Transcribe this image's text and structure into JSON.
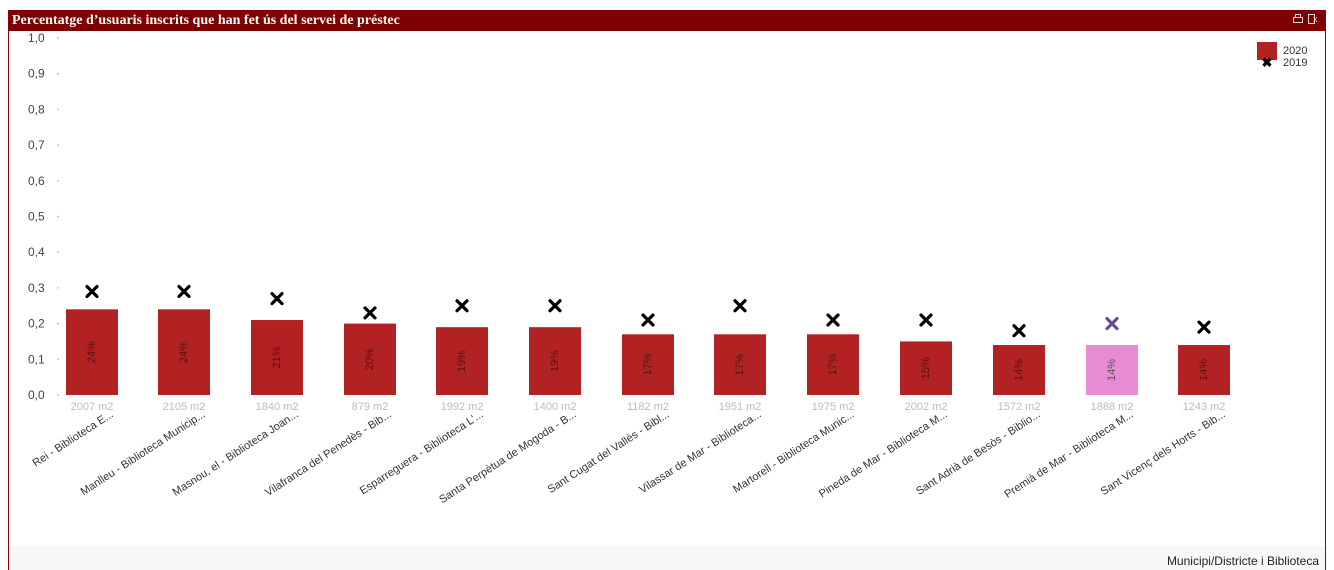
{
  "title": "Percentatge d’usuaris inscrits que han fet ús del servei de préstec",
  "toolbar": {
    "icons": [
      "printer-icon",
      "export-icon"
    ]
  },
  "chart_data": {
    "type": "bar",
    "categories": [
      "Rei - Biblioteca E...",
      "Manlleu - Biblioteca Municip...",
      "Masnou, el - Biblioteca Joan...",
      "Vilafranca del Penedès - Bib...",
      "Esparreguera - Biblioteca L'...",
      "Santa Perpètua de Mogoda - B...",
      "Sant Cugat del Vallès - Bibl...",
      "Vilassar de Mar - Biblioteca...",
      "Martorell - Biblioteca Munic...",
      "Pineda de Mar - Biblioteca M...",
      "Sant Adrià de Besòs - Biblio...",
      "Premià de Mar - Biblioteca M...",
      "Sant Vicenç dels Horts - Bib..."
    ],
    "areas": [
      "2007 m2",
      "2105 m2",
      "1840 m2",
      "879 m2",
      "1992 m2",
      "1400 m2",
      "1182 m2",
      "1951 m2",
      "1975 m2",
      "2002 m2",
      "1572 m2",
      "1888 m2",
      "1243 m2"
    ],
    "series": [
      {
        "name": "2020",
        "type": "bar",
        "values": [
          0.24,
          0.24,
          0.21,
          0.2,
          0.19,
          0.19,
          0.17,
          0.17,
          0.17,
          0.15,
          0.14,
          0.14,
          0.14
        ],
        "labels": [
          "24%",
          "24%",
          "21%",
          "20%",
          "19%",
          "19%",
          "17%",
          "17%",
          "17%",
          "15%",
          "14%",
          "14%",
          "14%"
        ]
      },
      {
        "name": "2019",
        "type": "scatter",
        "values": [
          0.29,
          0.29,
          0.27,
          0.23,
          0.25,
          0.25,
          0.21,
          0.25,
          0.21,
          0.21,
          0.18,
          0.2,
          0.19
        ]
      }
    ],
    "highlight_index": 11,
    "yticks": [
      "0,0",
      "0,1",
      "0,2",
      "0,3",
      "0,4",
      "0,5",
      "0,6",
      "0,7",
      "0,8",
      "0,9",
      "1,0"
    ],
    "ylim": [
      0,
      1
    ],
    "xlabel": "Municipi/Districte i Biblioteca",
    "legend_position": "top-right",
    "colors": {
      "bar": "#b22222",
      "highlight_bar": "#e88ad4",
      "marker": "#000000",
      "highlight_marker": "#6a4c93",
      "header": "#7f0000"
    }
  }
}
